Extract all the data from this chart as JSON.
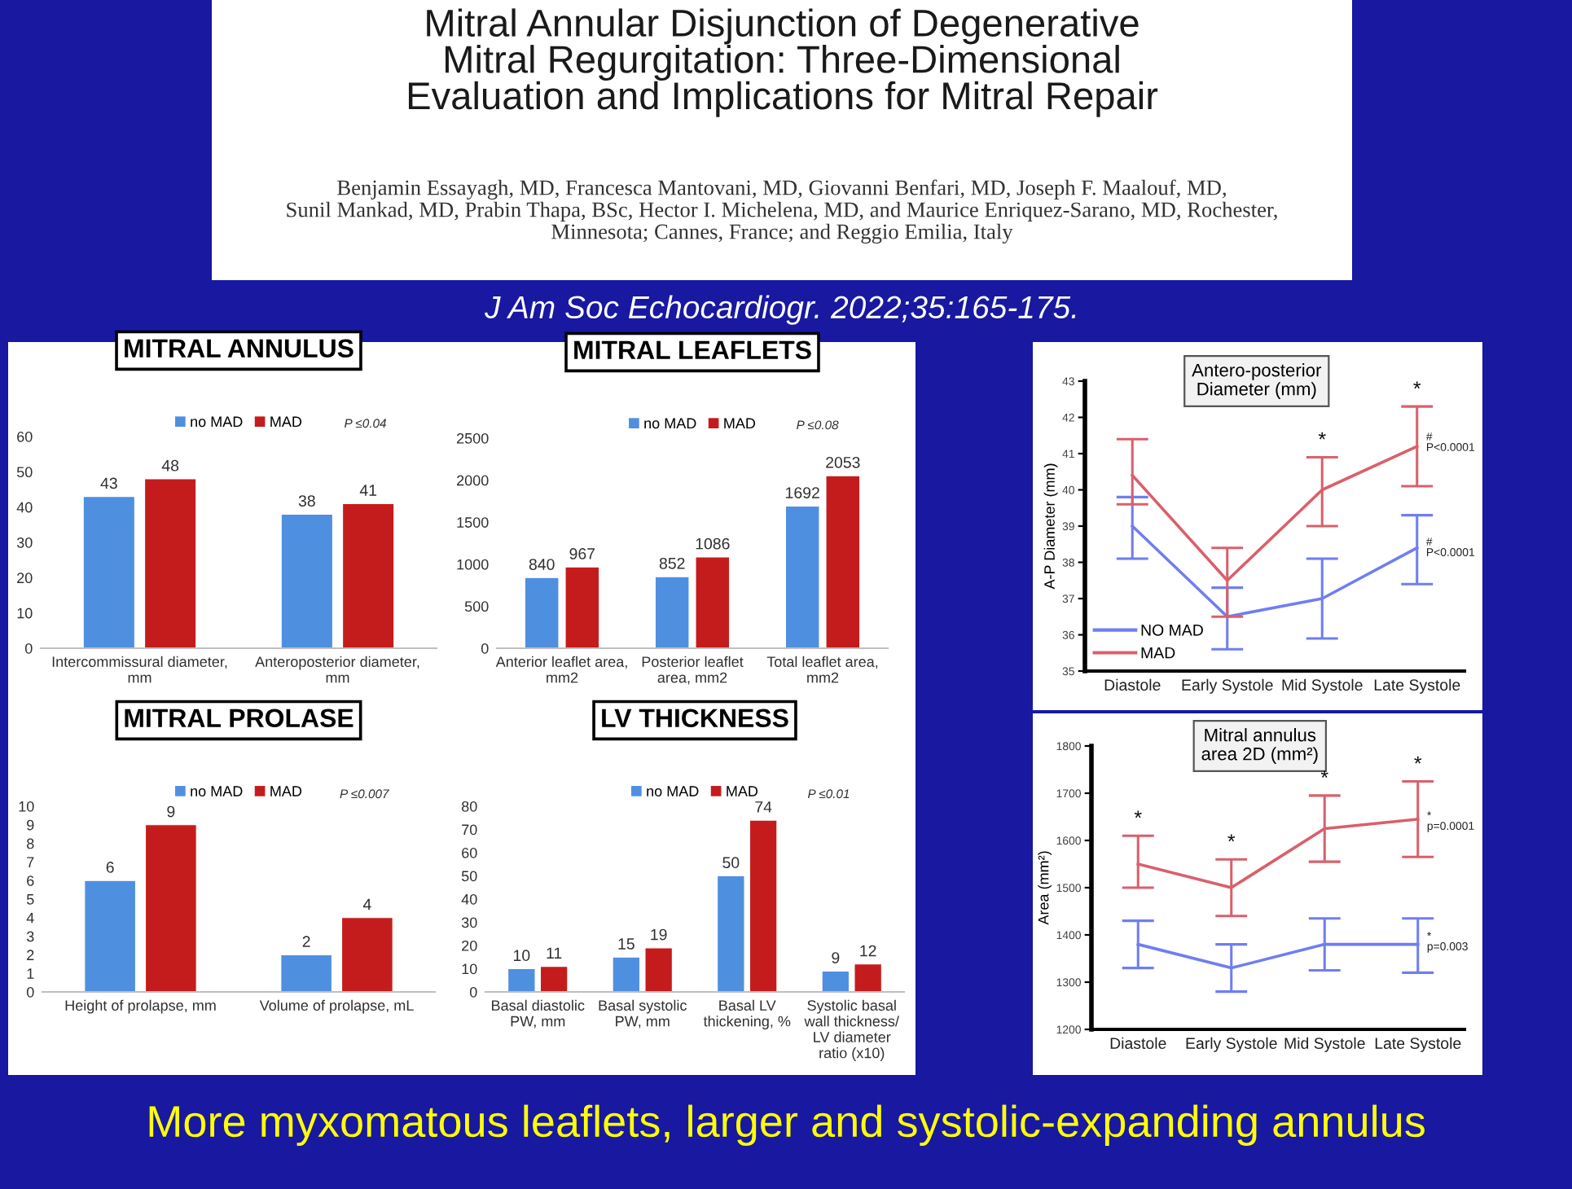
{
  "chart_data": [
    {
      "type": "other",
      "title": "Mitral Annular Disjunction of Degenerative\nMitral Regurgitation: Three-Dimensional\nEvaluation and Implications for Mitral Repair",
      "subtitle": "Benjamin Essayagh, MD, Francesca Mantovani, MD, Giovanni Benfari, MD, Joseph F. Maalouf, MD,\nSunil Mankad, MD, Prabin Thapa, BSc, Hector I. Michelena, MD, and Maurice Enriquez-Sarano, MD, Rochester,\nMinnesota; Cannes, France; and Reggio Emilia, Italy",
      "annotations": [
        "J Am Soc Echocardiogr. 2022;35:165-175."
      ]
    },
    {
      "type": "bar",
      "title": "MITRAL ANNULUS",
      "categories": [
        "Intercommissural diameter,\nmm",
        "Anteroposterior diameter,\nmm"
      ],
      "series": [
        {
          "name": "no MAD",
          "color": "#4f8fe0",
          "values": [
            43,
            38
          ]
        },
        {
          "name": "MAD",
          "color": "#c41c1c",
          "values": [
            48,
            41
          ]
        }
      ],
      "ylim": [
        0,
        60
      ],
      "yticks": [
        0,
        10,
        20,
        30,
        40,
        50,
        60
      ],
      "data_labels": true,
      "legend": "top",
      "annotations": [
        "P ≤0.04"
      ]
    },
    {
      "type": "bar",
      "title": "MITRAL LEAFLETS",
      "categories": [
        "Anterior leaflet area,\nmm2",
        "Posterior leaflet\narea, mm2",
        "Total leaflet area,\nmm2"
      ],
      "series": [
        {
          "name": "no MAD",
          "color": "#4f8fe0",
          "values": [
            840,
            852,
            1692
          ]
        },
        {
          "name": "MAD",
          "color": "#c41c1c",
          "values": [
            967,
            1086,
            2053
          ]
        }
      ],
      "ylim": [
        0,
        2500
      ],
      "yticks": [
        0,
        500,
        1000,
        1500,
        2000,
        2500
      ],
      "data_labels": true,
      "legend": "top",
      "annotations": [
        "P ≤0.08"
      ]
    },
    {
      "type": "bar",
      "title": "MITRAL PROLASE",
      "categories": [
        "Height of prolapse, mm",
        "Volume of prolapse, mL"
      ],
      "series": [
        {
          "name": "no MAD",
          "color": "#4f8fe0",
          "values": [
            6,
            2
          ]
        },
        {
          "name": "MAD",
          "color": "#c41c1c",
          "values": [
            9,
            4
          ]
        }
      ],
      "ylim": [
        0,
        10
      ],
      "yticks": [
        0,
        1,
        2,
        3,
        4,
        5,
        6,
        7,
        8,
        9,
        10
      ],
      "data_labels": true,
      "legend": "top",
      "annotations": [
        "P ≤0.007"
      ]
    },
    {
      "type": "bar",
      "title": "LV THICKNESS",
      "categories": [
        "Basal diastolic\nPW, mm",
        "Basal systolic\nPW, mm",
        "Basal LV\nthickening, %",
        "Systolic basal\nwall thickness/\nLV diameter\nratio (x10)"
      ],
      "series": [
        {
          "name": "no MAD",
          "color": "#4f8fe0",
          "values": [
            10,
            15,
            50,
            9
          ]
        },
        {
          "name": "MAD",
          "color": "#c41c1c",
          "values": [
            11,
            19,
            74,
            12
          ]
        }
      ],
      "ylim": [
        0,
        80
      ],
      "yticks": [
        0,
        10,
        20,
        30,
        40,
        50,
        60,
        70,
        80
      ],
      "data_labels": true,
      "legend": "top",
      "annotations": [
        "P ≤0.01"
      ]
    },
    {
      "type": "line",
      "title": "Antero-posterior\nDiameter (mm)",
      "ylabel": "A-P Diameter (mm)",
      "categories": [
        "Diastole",
        "Early Systole",
        "Mid Systole",
        "Late Systole"
      ],
      "series": [
        {
          "name": "NO MAD",
          "color": "#6f7ef0",
          "values": [
            39.0,
            36.5,
            37.0,
            38.4
          ],
          "errors": [
            [
              38.1,
              39.8
            ],
            [
              35.6,
              37.3
            ],
            [
              35.9,
              38.1
            ],
            [
              37.4,
              39.3
            ]
          ]
        },
        {
          "name": "MAD",
          "color": "#d9606b",
          "values": [
            40.4,
            37.5,
            40.0,
            41.2
          ],
          "errors": [
            [
              39.6,
              41.4
            ],
            [
              36.5,
              38.4
            ],
            [
              39.0,
              40.9
            ],
            [
              40.1,
              42.3
            ]
          ]
        }
      ],
      "ylim": [
        35,
        43
      ],
      "yticks": [
        35,
        36,
        37,
        38,
        39,
        40,
        41,
        42,
        43
      ],
      "legend": "lower left",
      "annotations": [
        {
          "text": "*",
          "x": "Mid Systole",
          "y": 40.9
        },
        {
          "text": "*",
          "x": "Late Systole",
          "y": 42.3
        },
        {
          "text": "#\nP<0.0001",
          "x": "Late Systole",
          "y": 41.3
        },
        {
          "text": "#\nP<0.0001",
          "x": "Late Systole",
          "y": 38.4
        }
      ]
    },
    {
      "type": "line",
      "title": "Mitral annulus\narea 2D (mm²)",
      "ylabel": "Area (mm²)",
      "categories": [
        "Diastole",
        "Early Systole",
        "Mid Systole",
        "Late Systole"
      ],
      "series": [
        {
          "color": "#6f7ef0",
          "values": [
            1380,
            1330,
            1380,
            1380
          ],
          "errors": [
            [
              1330,
              1430
            ],
            [
              1280,
              1380
            ],
            [
              1325,
              1435
            ],
            [
              1320,
              1435
            ]
          ]
        },
        {
          "color": "#d9606b",
          "values": [
            1550,
            1500,
            1625,
            1645
          ],
          "errors": [
            [
              1500,
              1610
            ],
            [
              1440,
              1560
            ],
            [
              1555,
              1695
            ],
            [
              1565,
              1725
            ]
          ]
        }
      ],
      "ylim": [
        1200,
        1800
      ],
      "yticks": [
        1200,
        1300,
        1400,
        1500,
        1600,
        1700,
        1800
      ],
      "annotations": [
        {
          "text": "*",
          "x": "Diastole",
          "y": 1610
        },
        {
          "text": "*",
          "x": "Early Systole",
          "y": 1560
        },
        {
          "text": "*",
          "x": "Mid Systole",
          "y": 1695
        },
        {
          "text": "*",
          "x": "Late Systole",
          "y": 1725
        },
        {
          "text": "*\np=0.0001",
          "x": "Late Systole",
          "y": 1640
        },
        {
          "text": "*\np=0.003",
          "x": "Late Systole",
          "y": 1385
        }
      ]
    },
    {
      "type": "other",
      "annotations": [
        "More myxomatous leaflets, larger and systolic-expanding annulus"
      ]
    }
  ]
}
